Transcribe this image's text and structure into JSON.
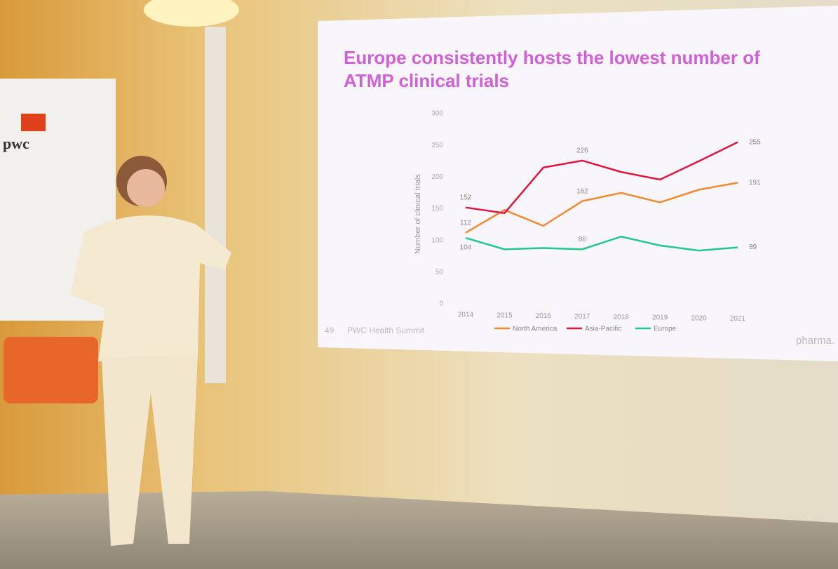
{
  "chart_data": {
    "type": "line",
    "title": "Europe consistently hosts the lowest number of ATMP clinical trials",
    "y_label": "Number of clinical trials",
    "categories": [
      "2014",
      "2015",
      "2016",
      "2017",
      "2018",
      "2019",
      "2020",
      "2021"
    ],
    "series": [
      {
        "name": "North America",
        "color": "#f08a30",
        "values": [
          112,
          148,
          123,
          162,
          175,
          160,
          180,
          191
        ]
      },
      {
        "name": "Asia-Pacific",
        "color": "#e0143c",
        "values": [
          152,
          143,
          215,
          226,
          208,
          196,
          225,
          255
        ]
      },
      {
        "name": "Europe",
        "color": "#20c890",
        "values": [
          104,
          86,
          88,
          86,
          106,
          92,
          84,
          89
        ]
      }
    ],
    "ylim": [
      0,
      300
    ],
    "yticks": [
      0,
      50,
      100,
      150,
      200,
      250,
      300
    ],
    "legend": "bottom"
  },
  "slide": {
    "number": "49",
    "footer": "PWC Health Summit",
    "brand": "pharma."
  },
  "banner": {
    "logo": "pwc"
  }
}
